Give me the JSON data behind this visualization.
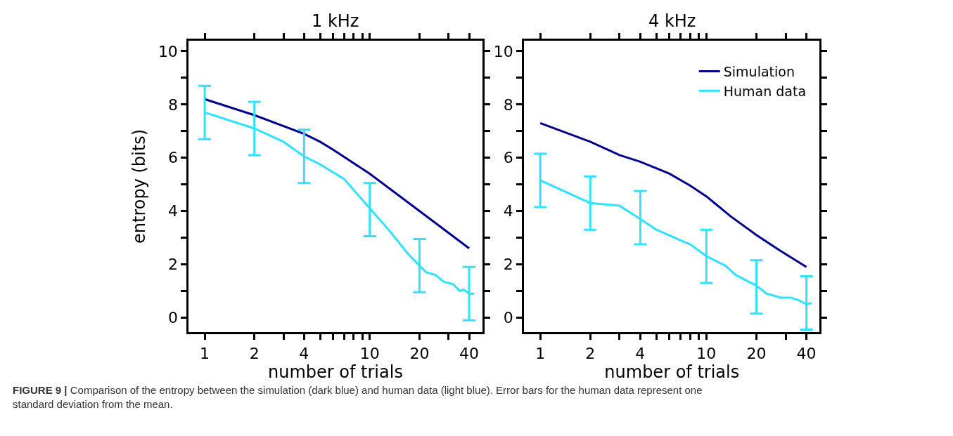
{
  "chart_data": [
    {
      "type": "line",
      "title": "1 kHz",
      "xlabel": "number of trials",
      "ylabel": "entropy (bits)",
      "log": "x",
      "xlim": [
        0.8,
        48
      ],
      "xticks": [
        1,
        2,
        {
          "value": 3,
          "label": null
        },
        4,
        {
          "value": 5,
          "label": null
        },
        {
          "value": 6,
          "label": null
        },
        {
          "value": 7,
          "label": null
        },
        {
          "value": 8,
          "label": null
        },
        {
          "value": 9,
          "label": null
        },
        10,
        20,
        {
          "value": 30,
          "label": null
        },
        40
      ],
      "ylim": [
        -0.55,
        10.4
      ],
      "yticks": [
        0,
        {
          "value": 1,
          "label": null
        },
        2,
        {
          "value": 3,
          "label": null
        },
        4,
        {
          "value": 5,
          "label": null
        },
        6,
        {
          "value": 7,
          "label": null
        },
        8,
        {
          "value": 9,
          "label": null
        },
        10
      ],
      "legend": false,
      "series": [
        {
          "color": "#00008b",
          "x": [
            1,
            2,
            4,
            5,
            6,
            10,
            20,
            40
          ],
          "values": [
            8.2,
            7.6,
            6.9,
            6.6,
            6.3,
            5.4,
            4.0,
            2.6
          ]
        },
        {
          "color": "#33e0ff",
          "x": [
            1,
            2,
            3,
            4,
            5,
            7,
            10,
            13,
            17,
            20,
            22,
            25,
            28,
            32,
            35,
            37,
            40,
            43
          ],
          "values": [
            7.7,
            7.1,
            6.6,
            6.05,
            5.75,
            5.2,
            4.1,
            3.3,
            2.4,
            1.95,
            1.7,
            1.6,
            1.35,
            1.25,
            1.0,
            1.05,
            0.9,
            0.9
          ],
          "errors": [
            [
              6.7,
              8.7
            ],
            [
              6.1,
              8.1
            ],
            null,
            [
              5.05,
              7.05
            ],
            null,
            null,
            [
              3.05,
              5.05
            ],
            null,
            null,
            [
              0.95,
              2.95
            ],
            null,
            null,
            null,
            null,
            null,
            null,
            [
              -0.1,
              1.9
            ],
            null
          ]
        }
      ],
      "annotations": [
        "FIGURE 9 | Comparison of the entropy between the simulation (dark blue) and human data (light blue). Error bars for the human data represent one standard deviation from the mean."
      ]
    },
    {
      "type": "line",
      "title": "4 kHz",
      "xlabel": "number of trials",
      "log": "x",
      "xlim": [
        0.8,
        48
      ],
      "xticks": [
        1,
        2,
        {
          "value": 3,
          "label": null
        },
        4,
        {
          "value": 5,
          "label": null
        },
        {
          "value": 6,
          "label": null
        },
        {
          "value": 7,
          "label": null
        },
        {
          "value": 8,
          "label": null
        },
        {
          "value": 9,
          "label": null
        },
        10,
        20,
        {
          "value": 30,
          "label": null
        },
        40
      ],
      "ylim": [
        -0.55,
        10.4
      ],
      "yticks": [
        0,
        {
          "value": 1,
          "label": null
        },
        2,
        {
          "value": 3,
          "label": null
        },
        4,
        {
          "value": 5,
          "label": null
        },
        6,
        {
          "value": 7,
          "label": null
        },
        8,
        {
          "value": 9,
          "label": null
        },
        10
      ],
      "legend": "top right",
      "series": [
        {
          "name": "Simulation",
          "color": "#00008b",
          "x": [
            1,
            2,
            3,
            4,
            6,
            8,
            10,
            14,
            20,
            28,
            40
          ],
          "values": [
            7.3,
            6.6,
            6.1,
            5.85,
            5.4,
            4.95,
            4.55,
            3.8,
            3.1,
            2.5,
            1.9
          ]
        },
        {
          "name": "Human data",
          "color": "#33e0ff",
          "x": [
            1,
            2,
            3,
            4,
            5,
            7,
            8,
            10,
            13,
            15,
            20,
            23,
            28,
            32,
            36,
            40,
            43
          ],
          "values": [
            5.15,
            4.3,
            4.2,
            3.7,
            3.3,
            2.9,
            2.75,
            2.3,
            1.95,
            1.6,
            1.2,
            0.9,
            0.75,
            0.75,
            0.65,
            0.5,
            0.55
          ],
          "errors": [
            [
              4.15,
              6.15
            ],
            [
              3.3,
              5.3
            ],
            null,
            [
              2.75,
              4.75
            ],
            null,
            null,
            null,
            [
              1.3,
              3.3
            ],
            null,
            null,
            [
              0.15,
              2.15
            ],
            null,
            null,
            null,
            null,
            [
              -0.45,
              1.55
            ],
            null
          ]
        }
      ]
    }
  ]
}
